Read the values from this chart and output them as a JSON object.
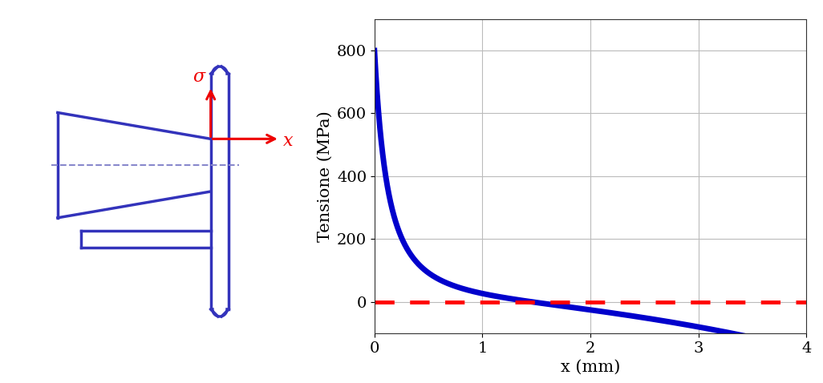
{
  "plot_color": "#0000cc",
  "dashed_color": "#ff0000",
  "sketch_color": "#3333bb",
  "arrow_color": "#ee0000",
  "dashed_sketch_color": "#8888cc",
  "xlabel": "x (mm)",
  "ylabel": "Tensione (MPa)",
  "xlim": [
    0,
    4
  ],
  "ylim": [
    -100,
    900
  ],
  "yticks": [
    0,
    200,
    400,
    600,
    800
  ],
  "xticks": [
    0,
    1,
    2,
    3,
    4
  ],
  "grid": true,
  "line_width": 5.0,
  "dashed_linewidth": 3.5,
  "sigma_label": "σ",
  "x_label": "x",
  "background_color": "#ffffff"
}
